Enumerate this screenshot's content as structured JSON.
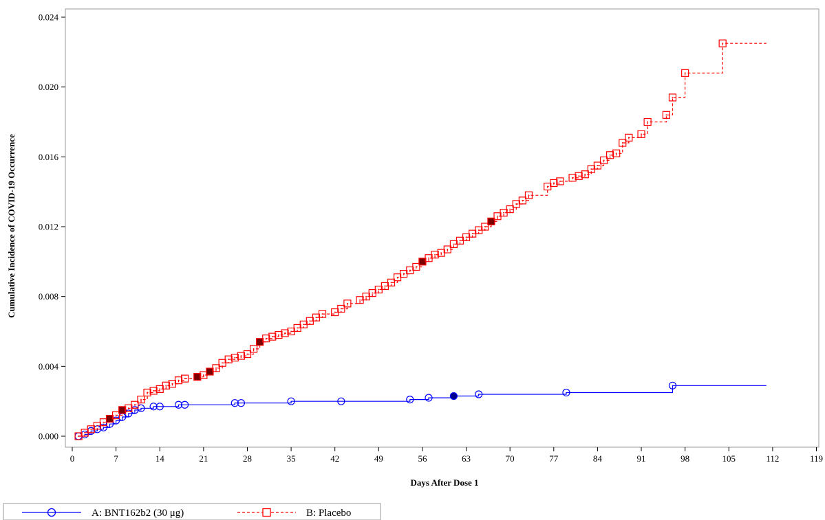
{
  "colors": {
    "series_a": "#0000ff",
    "series_b": "#ff0000",
    "axis": "#000000",
    "frame": "#9a9a9a"
  },
  "chart_data": {
    "type": "line",
    "step": true,
    "xlabel": "Days After Dose 1",
    "ylabel": "Cumulative Incidence of COVID-19 Occurrence",
    "xlim": [
      0,
      119
    ],
    "ylim": [
      0,
      0.024
    ],
    "xticks": [
      0,
      7,
      14,
      21,
      28,
      35,
      42,
      49,
      56,
      63,
      70,
      77,
      84,
      91,
      98,
      105,
      112,
      119
    ],
    "yticks": [
      0.0,
      0.004,
      0.008,
      0.012,
      0.016,
      0.02,
      0.024
    ],
    "ytick_labels": [
      "0.000",
      "0.004",
      "0.008",
      "0.012",
      "0.016",
      "0.020",
      "0.024"
    ],
    "grid": false,
    "legend_position": "bottom-left",
    "series": [
      {
        "name": "A: BNT162b2 (30 μg)",
        "line_style": "solid",
        "marker": "circle",
        "end_x": 111,
        "points": [
          [
            1,
            0.0
          ],
          [
            2,
            0.0001
          ],
          [
            3,
            0.0003
          ],
          [
            4,
            0.0004
          ],
          [
            5,
            0.0005
          ],
          [
            6,
            0.0007
          ],
          [
            7,
            0.0009
          ],
          [
            8,
            0.0011
          ],
          [
            9,
            0.0013
          ],
          [
            10,
            0.0015
          ],
          [
            11,
            0.0016
          ],
          [
            13,
            0.0017
          ],
          [
            14,
            0.0017
          ],
          [
            17,
            0.0018
          ],
          [
            18,
            0.0018
          ],
          [
            26,
            0.0019
          ],
          [
            27,
            0.0019
          ],
          [
            35,
            0.002
          ],
          [
            43,
            0.002
          ],
          [
            54,
            0.0021
          ],
          [
            57,
            0.0022
          ],
          [
            61,
            0.0023
          ],
          [
            65,
            0.0024
          ],
          [
            79,
            0.0025
          ],
          [
            96,
            0.0029
          ]
        ],
        "filled_x": [
          61
        ]
      },
      {
        "name": "B: Placebo",
        "line_style": "dashed",
        "marker": "square",
        "end_x": 111,
        "points": [
          [
            1,
            0.0
          ],
          [
            2,
            0.0002
          ],
          [
            3,
            0.0004
          ],
          [
            4,
            0.0006
          ],
          [
            5,
            0.0008
          ],
          [
            6,
            0.001
          ],
          [
            7,
            0.0012
          ],
          [
            8,
            0.0015
          ],
          [
            9,
            0.0016
          ],
          [
            10,
            0.0018
          ],
          [
            11,
            0.0021
          ],
          [
            12,
            0.0025
          ],
          [
            13,
            0.0026
          ],
          [
            14,
            0.0027
          ],
          [
            15,
            0.0029
          ],
          [
            16,
            0.003
          ],
          [
            17,
            0.0032
          ],
          [
            18,
            0.0033
          ],
          [
            20,
            0.0034
          ],
          [
            21,
            0.0035
          ],
          [
            22,
            0.0037
          ],
          [
            23,
            0.0039
          ],
          [
            24,
            0.0042
          ],
          [
            25,
            0.0044
          ],
          [
            26,
            0.0045
          ],
          [
            27,
            0.0046
          ],
          [
            28,
            0.0047
          ],
          [
            29,
            0.005
          ],
          [
            30,
            0.0054
          ],
          [
            31,
            0.0056
          ],
          [
            32,
            0.0057
          ],
          [
            33,
            0.0058
          ],
          [
            34,
            0.0059
          ],
          [
            35,
            0.006
          ],
          [
            36,
            0.0062
          ],
          [
            37,
            0.0064
          ],
          [
            38,
            0.0066
          ],
          [
            39,
            0.0068
          ],
          [
            40,
            0.007
          ],
          [
            42,
            0.0071
          ],
          [
            43,
            0.0073
          ],
          [
            44,
            0.0076
          ],
          [
            46,
            0.0078
          ],
          [
            47,
            0.008
          ],
          [
            48,
            0.0082
          ],
          [
            49,
            0.0084
          ],
          [
            50,
            0.0086
          ],
          [
            51,
            0.0088
          ],
          [
            52,
            0.0091
          ],
          [
            53,
            0.0093
          ],
          [
            54,
            0.0095
          ],
          [
            55,
            0.0097
          ],
          [
            56,
            0.01
          ],
          [
            57,
            0.0102
          ],
          [
            58,
            0.0104
          ],
          [
            59,
            0.0105
          ],
          [
            60,
            0.0107
          ],
          [
            61,
            0.011
          ],
          [
            62,
            0.0112
          ],
          [
            63,
            0.0114
          ],
          [
            64,
            0.0116
          ],
          [
            65,
            0.0118
          ],
          [
            66,
            0.012
          ],
          [
            67,
            0.0123
          ],
          [
            68,
            0.0126
          ],
          [
            69,
            0.0128
          ],
          [
            70,
            0.013
          ],
          [
            71,
            0.0133
          ],
          [
            72,
            0.0135
          ],
          [
            73,
            0.0138
          ],
          [
            76,
            0.0143
          ],
          [
            77,
            0.0145
          ],
          [
            78,
            0.0146
          ],
          [
            80,
            0.0148
          ],
          [
            81,
            0.0149
          ],
          [
            82,
            0.015
          ],
          [
            83,
            0.0153
          ],
          [
            84,
            0.0155
          ],
          [
            85,
            0.0158
          ],
          [
            86,
            0.0161
          ],
          [
            87,
            0.0162
          ],
          [
            88,
            0.0168
          ],
          [
            89,
            0.0171
          ],
          [
            91,
            0.0173
          ],
          [
            92,
            0.018
          ],
          [
            95,
            0.0184
          ],
          [
            96,
            0.0194
          ],
          [
            98,
            0.0208
          ],
          [
            104,
            0.0225
          ]
        ],
        "filled_x": [
          6,
          8,
          20,
          22,
          30,
          56,
          67
        ]
      }
    ]
  }
}
